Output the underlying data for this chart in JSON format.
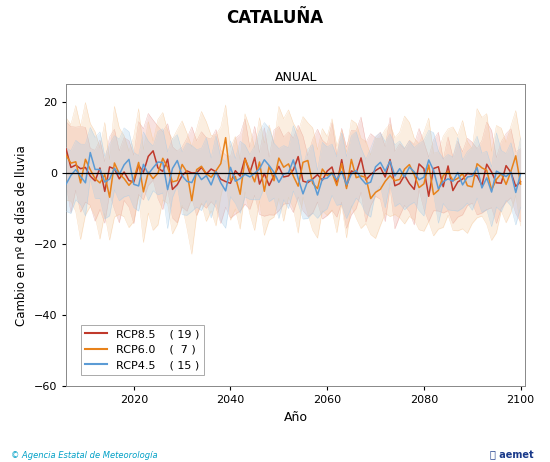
{
  "title": "CATALUÑA",
  "subtitle": "ANUAL",
  "xlabel": "Año",
  "ylabel": "Cambio en nº de días de lluvia",
  "xlim": [
    2006,
    2101
  ],
  "ylim": [
    -60,
    25
  ],
  "yticks": [
    -60,
    -40,
    -20,
    0,
    20
  ],
  "xticks": [
    2020,
    2040,
    2060,
    2080,
    2100
  ],
  "rcp85_color": "#c0392b",
  "rcp60_color": "#e8821a",
  "rcp45_color": "#5b9bd5",
  "rcp85_fill": "#e8a09a",
  "rcp60_fill": "#f5c89a",
  "rcp45_fill": "#a8cce8",
  "rcp85_label": "RCP8.5",
  "rcp60_label": "RCP6.0",
  "rcp45_label": "RCP4.5",
  "rcp85_count": "( 19 )",
  "rcp60_count": "(  7 )",
  "rcp45_count": "( 15 )",
  "start_year": 2006,
  "n_years": 95,
  "footer_left": "© Agencia Estatal de Meteorología",
  "background_color": "#ffffff",
  "plot_bg_color": "#ffffff"
}
